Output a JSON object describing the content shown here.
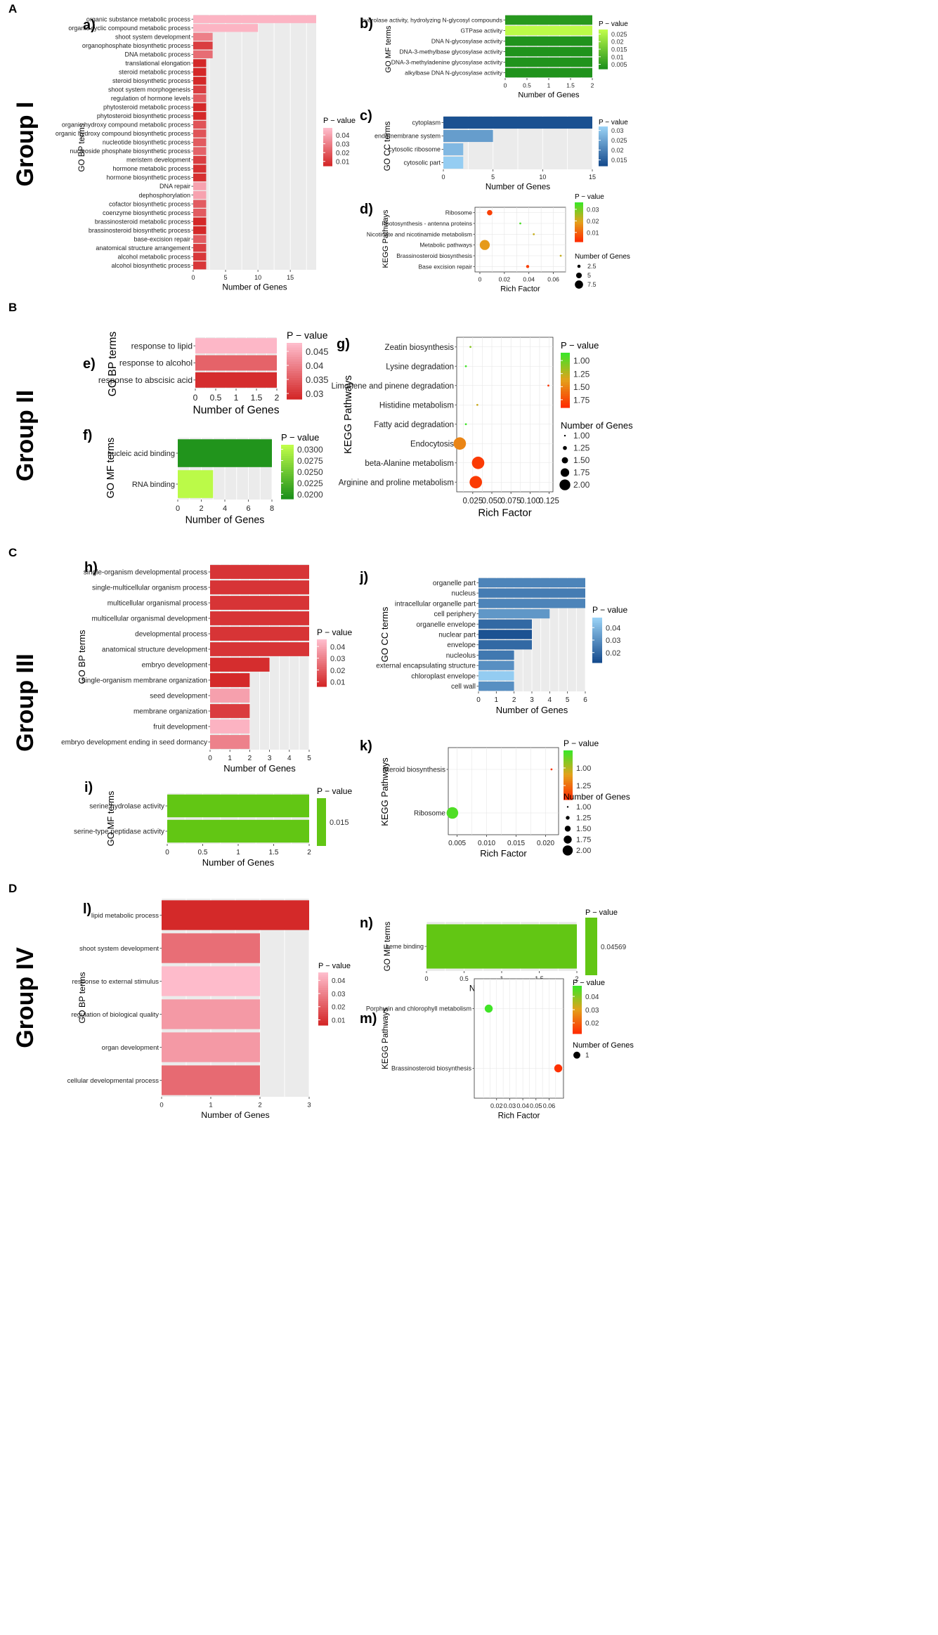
{
  "colors": {
    "grid_bg": "#ebebeb",
    "grid_line": "#ffffff",
    "kegg_grid": "#e6e6e6",
    "red_low": "#d32525",
    "pink_high": "#ffbfcf",
    "green_low": "#1a8f1a",
    "lime_high": "#c2ff4a",
    "blue_low": "#144a8c",
    "blue_high": "#9cd4f7",
    "kegg_low": "#ff2a00",
    "kegg_high": "#36e827",
    "flat_green": "#62c614"
  },
  "groups": [
    {
      "letter": "A",
      "label": "Group I"
    },
    {
      "letter": "B",
      "label": "Group II"
    },
    {
      "letter": "C",
      "label": "Group III"
    },
    {
      "letter": "D",
      "label": "Group IV"
    }
  ],
  "chart_data": [
    {
      "id": "a",
      "panel_label": "a)",
      "type": "bar",
      "orientation": "horizontal",
      "ylabel": "GO BP terms",
      "xlabel": "Number of Genes",
      "xlim": [
        0,
        19
      ],
      "xticks": [
        0,
        5,
        10,
        15
      ],
      "legend": {
        "title": "P − value",
        "ticks": [
          0.04,
          0.03,
          0.02,
          0.01
        ],
        "range": [
          0.005,
          0.048
        ]
      },
      "color_scale": "red_pink",
      "categories": [
        "organic substance metabolic process",
        "organic cyclic compound metabolic process",
        "shoot system development",
        "organophosphate biosynthetic process",
        "DNA metabolic process",
        "translational elongation",
        "steroid metabolic process",
        "steroid biosynthetic process",
        "shoot system morphogenesis",
        "regulation of hormone levels",
        "phytosteroid metabolic process",
        "phytosteroid biosynthetic process",
        "organic hydroxy compound metabolic process",
        "organic hydroxy compound biosynthetic process",
        "nucleotide biosynthetic process",
        "nucleoside phosphate biosynthetic process",
        "meristem development",
        "hormone metabolic process",
        "hormone biosynthetic process",
        "DNA repair",
        "dephosphorylation",
        "cofactor biosynthetic process",
        "coenzyme biosynthetic process",
        "brassinosteroid metabolic process",
        "brassinosteroid biosynthetic process",
        "base-excision repair",
        "anatomical structure arrangement",
        "alcohol metabolic process",
        "alcohol biosynthetic process"
      ],
      "values": [
        19,
        10,
        3,
        3,
        3,
        2,
        2,
        2,
        2,
        2,
        2,
        2,
        2,
        2,
        2,
        2,
        2,
        2,
        2,
        2,
        2,
        2,
        2,
        2,
        2,
        2,
        2,
        2,
        2
      ],
      "pvalues": [
        0.045,
        0.045,
        0.03,
        0.012,
        0.025,
        0.006,
        0.006,
        0.006,
        0.012,
        0.02,
        0.006,
        0.006,
        0.018,
        0.018,
        0.02,
        0.022,
        0.012,
        0.008,
        0.008,
        0.04,
        0.04,
        0.02,
        0.02,
        0.006,
        0.006,
        0.02,
        0.012,
        0.01,
        0.01
      ]
    },
    {
      "id": "b",
      "panel_label": "b)",
      "type": "bar",
      "orientation": "horizontal",
      "ylabel": "GO MF terms",
      "xlabel": "Number of Genes",
      "xlim": [
        0,
        2
      ],
      "xticks": [
        0.0,
        0.5,
        1.0,
        1.5,
        2.0
      ],
      "legend": {
        "title": "P − value",
        "ticks": [
          0.025,
          0.02,
          0.015,
          0.01,
          0.005
        ],
        "range": [
          0.002,
          0.028
        ]
      },
      "color_scale": "green_lime",
      "categories": [
        "hydrolase activity, hydrolyzing N-glycosyl compounds",
        "GTPase activity",
        "DNA N-glycosylase activity",
        "DNA-3-methylbase glycosylase activity",
        "DNA-3-methyladenine glycosylase activity",
        "alkylbase DNA N-glycosylase activity"
      ],
      "values": [
        2,
        2,
        2,
        2,
        2,
        2
      ],
      "pvalues": [
        0.004,
        0.027,
        0.003,
        0.003,
        0.003,
        0.003
      ]
    },
    {
      "id": "c",
      "panel_label": "c)",
      "type": "bar",
      "orientation": "horizontal",
      "ylabel": "GO CC terms",
      "xlabel": "Number of Genes",
      "xlim": [
        0,
        15
      ],
      "xticks": [
        0,
        5,
        10,
        15
      ],
      "legend": {
        "title": "P − value",
        "ticks": [
          0.03,
          0.025,
          0.02,
          0.015
        ],
        "range": [
          0.012,
          0.032
        ]
      },
      "color_scale": "blue",
      "categories": [
        "cytoplasm",
        "endomembrane system",
        "cytosolic ribosome",
        "cytosolic part"
      ],
      "values": [
        15,
        5,
        2,
        2
      ],
      "pvalues": [
        0.013,
        0.024,
        0.028,
        0.031
      ]
    },
    {
      "id": "d",
      "panel_label": "d)",
      "type": "scatter",
      "ylabel": "KEGG Pathways",
      "xlabel": "Rich Factor",
      "xlim": [
        -0.004,
        0.07
      ],
      "xticks": [
        0.0,
        0.02,
        0.04,
        0.06
      ],
      "legend": {
        "title": "P − value",
        "ticks": [
          0.03,
          0.02,
          0.01
        ],
        "range": [
          0.002,
          0.036
        ],
        "size_title": "Number of Genes",
        "size_ticks": [
          2.5,
          5.0,
          7.5
        ],
        "size_range": [
          1,
          8
        ]
      },
      "color_scale": "kegg",
      "categories": [
        "Ribosome",
        "Photosynthesis - antenna proteins",
        "Nicotinate and nicotinamide metabolism",
        "Metabolic pathways",
        "Brassinosteroid biosynthesis",
        "Base excision repair"
      ],
      "x": [
        0.008,
        0.033,
        0.044,
        0.004,
        0.066,
        0.039
      ],
      "sizes": [
        4,
        1,
        1,
        8,
        1,
        2
      ],
      "pvalues": [
        0.005,
        0.034,
        0.022,
        0.018,
        0.022,
        0.005
      ]
    },
    {
      "id": "e",
      "panel_label": "e)",
      "type": "bar",
      "orientation": "horizontal",
      "ylabel": "GO BP terms",
      "xlabel": "Number of Genes",
      "xlim": [
        0,
        2
      ],
      "xticks": [
        0.0,
        0.5,
        1.0,
        1.5,
        2.0
      ],
      "legend": {
        "title": "P − value",
        "ticks": [
          0.045,
          0.04,
          0.035,
          0.03
        ],
        "range": [
          0.028,
          0.048
        ]
      },
      "color_scale": "red_pink",
      "categories": [
        "response to lipid",
        "response to alcohol",
        "response to abscisic acid"
      ],
      "values": [
        2,
        2,
        2
      ],
      "pvalues": [
        0.047,
        0.036,
        0.029
      ]
    },
    {
      "id": "f",
      "panel_label": "f)",
      "type": "bar",
      "orientation": "horizontal",
      "ylabel": "GO MF terms",
      "xlabel": "Number of Genes",
      "xlim": [
        0,
        8
      ],
      "xticks": [
        0,
        2,
        4,
        6,
        8
      ],
      "legend": {
        "title": "P − value",
        "ticks": [
          0.03,
          0.0275,
          0.025,
          0.0225,
          0.02
        ],
        "tick_labels": [
          "0.0300",
          "0.0275",
          "0.0250",
          "0.0225",
          "0.0200"
        ],
        "range": [
          0.019,
          0.031
        ]
      },
      "color_scale": "green_lime",
      "categories": [
        "nucleic acid binding",
        "RNA binding"
      ],
      "values": [
        8,
        3
      ],
      "pvalues": [
        0.0195,
        0.0305
      ]
    },
    {
      "id": "g",
      "panel_label": "g)",
      "type": "scatter",
      "ylabel": "KEGG Pathways",
      "xlabel": "Rich Factor",
      "xlim": [
        0.004,
        0.13
      ],
      "xticks": [
        0.025,
        0.05,
        0.075,
        0.1,
        0.125
      ],
      "tick_labels": [
        "0.025",
        "0.050",
        "0.075",
        "0.100",
        "0.125"
      ],
      "legend": {
        "title": "P − value",
        "ticks": [
          0.04,
          0.03,
          0.02,
          0.01
        ],
        "range": [
          0.004,
          0.046
        ],
        "size_title": "Number of Genes",
        "size_ticks": [
          1.0,
          1.25,
          1.5,
          1.75,
          2.0
        ],
        "tick_labels": [
          "1.00",
          "1.25",
          "1.50",
          "1.75",
          "2.00"
        ],
        "size_range": [
          1,
          2
        ]
      },
      "color_scale": "kegg",
      "categories": [
        "Zeatin biosynthesis",
        "Lysine degradation",
        "Limonene and pinene degradation",
        "Histidine metabolism",
        "Fatty acid degradation",
        "Endocytosis",
        "beta-Alanine metabolism",
        "Arginine and proline metabolism"
      ],
      "x": [
        0.022,
        0.016,
        0.124,
        0.031,
        0.016,
        0.008,
        0.032,
        0.029
      ],
      "sizes": [
        1,
        1,
        1,
        1,
        1,
        2,
        2,
        2
      ],
      "pvalues": [
        0.036,
        0.045,
        0.006,
        0.028,
        0.045,
        0.02,
        0.007,
        0.007
      ]
    },
    {
      "id": "h",
      "panel_label": "h)",
      "type": "bar",
      "orientation": "horizontal",
      "ylabel": "GO BP terms",
      "xlabel": "Number of Genes",
      "xlim": [
        0,
        5
      ],
      "xticks": [
        0,
        1,
        2,
        3,
        4,
        5
      ],
      "legend": {
        "title": "P − value",
        "ticks": [
          0.04,
          0.03,
          0.02,
          0.01
        ],
        "range": [
          0.006,
          0.046
        ]
      },
      "color_scale": "red_pink",
      "categories": [
        "single-organism developmental process",
        "single-multicellular organism process",
        "multicellular organismal process",
        "multicellular organismal development",
        "developmental process",
        "anatomical structure development",
        "embryo development",
        "single-organism membrane organization",
        "seed development",
        "membrane organization",
        "fruit development",
        "embryo development ending in seed dormancy"
      ],
      "values": [
        5,
        5,
        5,
        5,
        5,
        5,
        3,
        2,
        2,
        2,
        2,
        2
      ],
      "pvalues": [
        0.01,
        0.01,
        0.01,
        0.01,
        0.01,
        0.01,
        0.008,
        0.007,
        0.038,
        0.012,
        0.043,
        0.03
      ]
    },
    {
      "id": "i",
      "panel_label": "i)",
      "type": "bar",
      "orientation": "horizontal",
      "ylabel": "GO MF terms",
      "xlabel": "Number of Genes",
      "xlim": [
        0,
        2
      ],
      "xticks": [
        0.0,
        0.5,
        1.0,
        1.5,
        2.0
      ],
      "legend": {
        "title": "P − value",
        "ticks": [
          0.015
        ],
        "range": [
          0.015,
          0.015
        ]
      },
      "color_scale": "flat_green",
      "categories": [
        "serine hydrolase activity",
        "serine-type peptidase activity"
      ],
      "values": [
        2,
        2
      ],
      "pvalues": [
        0.015,
        0.015
      ]
    },
    {
      "id": "j",
      "panel_label": "j)",
      "type": "bar",
      "orientation": "horizontal",
      "ylabel": "GO CC terms",
      "xlabel": "Number of Genes",
      "xlim": [
        0,
        6
      ],
      "xticks": [
        0,
        1,
        2,
        3,
        4,
        5,
        6
      ],
      "legend": {
        "title": "P − value",
        "ticks": [
          0.04,
          0.03,
          0.02
        ],
        "range": [
          0.012,
          0.048
        ]
      },
      "color_scale": "blue",
      "categories": [
        "organelle part",
        "nucleus",
        "intracellular organelle part",
        "cell periphery",
        "organelle envelope",
        "nuclear part",
        "envelope",
        "nucleolus",
        "external encapsulating structure",
        "chloroplast envelope",
        "cell wall"
      ],
      "values": [
        6,
        6,
        6,
        4,
        3,
        3,
        3,
        2,
        2,
        2,
        2
      ],
      "pvalues": [
        0.027,
        0.025,
        0.027,
        0.032,
        0.02,
        0.014,
        0.02,
        0.024,
        0.03,
        0.046,
        0.03
      ]
    },
    {
      "id": "k",
      "panel_label": "k)",
      "type": "scatter",
      "ylabel": "KEGG Pathways",
      "xlabel": "Rich Factor",
      "xlim": [
        0.0035,
        0.0222
      ],
      "xticks": [
        0.005,
        0.01,
        0.015,
        0.02
      ],
      "tick_labels": [
        "0.005",
        "0.010",
        "0.015",
        "0.020"
      ],
      "legend": {
        "title": "P − value",
        "ticks": [
          0.045,
          0.04
        ],
        "range": [
          0.036,
          0.05
        ],
        "size_title": "Number of Genes",
        "size_ticks": [
          1.0,
          1.25,
          1.5,
          1.75,
          2.0
        ],
        "tick_labels": [
          "1.00",
          "1.25",
          "1.50",
          "1.75",
          "2.00"
        ],
        "size_range": [
          1,
          2
        ]
      },
      "color_scale": "kegg",
      "categories": [
        "Steroid biosynthesis",
        "Ribosome"
      ],
      "x": [
        0.021,
        0.0042
      ],
      "sizes": [
        1,
        2
      ],
      "pvalues": [
        0.0365,
        0.049
      ]
    },
    {
      "id": "l",
      "panel_label": "l)",
      "type": "bar",
      "orientation": "horizontal",
      "ylabel": "GO BP terms",
      "xlabel": "Number of Genes",
      "xlim": [
        0,
        3
      ],
      "xticks": [
        0,
        1,
        2,
        3
      ],
      "legend": {
        "title": "P − value",
        "ticks": [
          0.04,
          0.03,
          0.02,
          0.01
        ],
        "range": [
          0.006,
          0.046
        ]
      },
      "color_scale": "red_pink",
      "categories": [
        "lipid metabolic process",
        "shoot system development",
        "response to external stimulus",
        "regulation of biological quality",
        "organ development",
        "cellular developmental process"
      ],
      "values": [
        3,
        2,
        2,
        2,
        2,
        2
      ],
      "pvalues": [
        0.007,
        0.025,
        0.045,
        0.036,
        0.036,
        0.024
      ]
    },
    {
      "id": "n",
      "panel_label": "n)",
      "type": "bar",
      "orientation": "horizontal",
      "ylabel": "GO MF terms",
      "xlabel": "Number of Genes",
      "xlim": [
        0,
        2
      ],
      "xticks": [
        0.0,
        0.5,
        1.0,
        1.5,
        2.0
      ],
      "legend": {
        "title": "P − value",
        "ticks": [
          0.04569
        ],
        "range": [
          0.04569,
          0.04569
        ]
      },
      "color_scale": "flat_green",
      "categories": [
        "heme binding"
      ],
      "values": [
        2
      ],
      "pvalues": [
        0.04569
      ]
    },
    {
      "id": "m",
      "panel_label": "m)",
      "type": "scatter",
      "ylabel": "KEGG Pathways",
      "xlabel": "Rich Factor",
      "xlim": [
        0.003,
        0.071
      ],
      "xticks": [
        0.02,
        0.03,
        0.04,
        0.05,
        0.06
      ],
      "legend": {
        "title": "P − value",
        "ticks": [
          0.04,
          0.03,
          0.02
        ],
        "range": [
          0.012,
          0.048
        ],
        "size_title": "Number of Genes",
        "size_ticks": [
          1
        ],
        "size_range": [
          1,
          1
        ]
      },
      "color_scale": "kegg",
      "categories": [
        "Porphyrin and chlorophyll metabolism",
        "Brassinosteroid biosynthesis"
      ],
      "x": [
        0.014,
        0.067
      ],
      "sizes": [
        1,
        1
      ],
      "pvalues": [
        0.047,
        0.013
      ]
    }
  ]
}
